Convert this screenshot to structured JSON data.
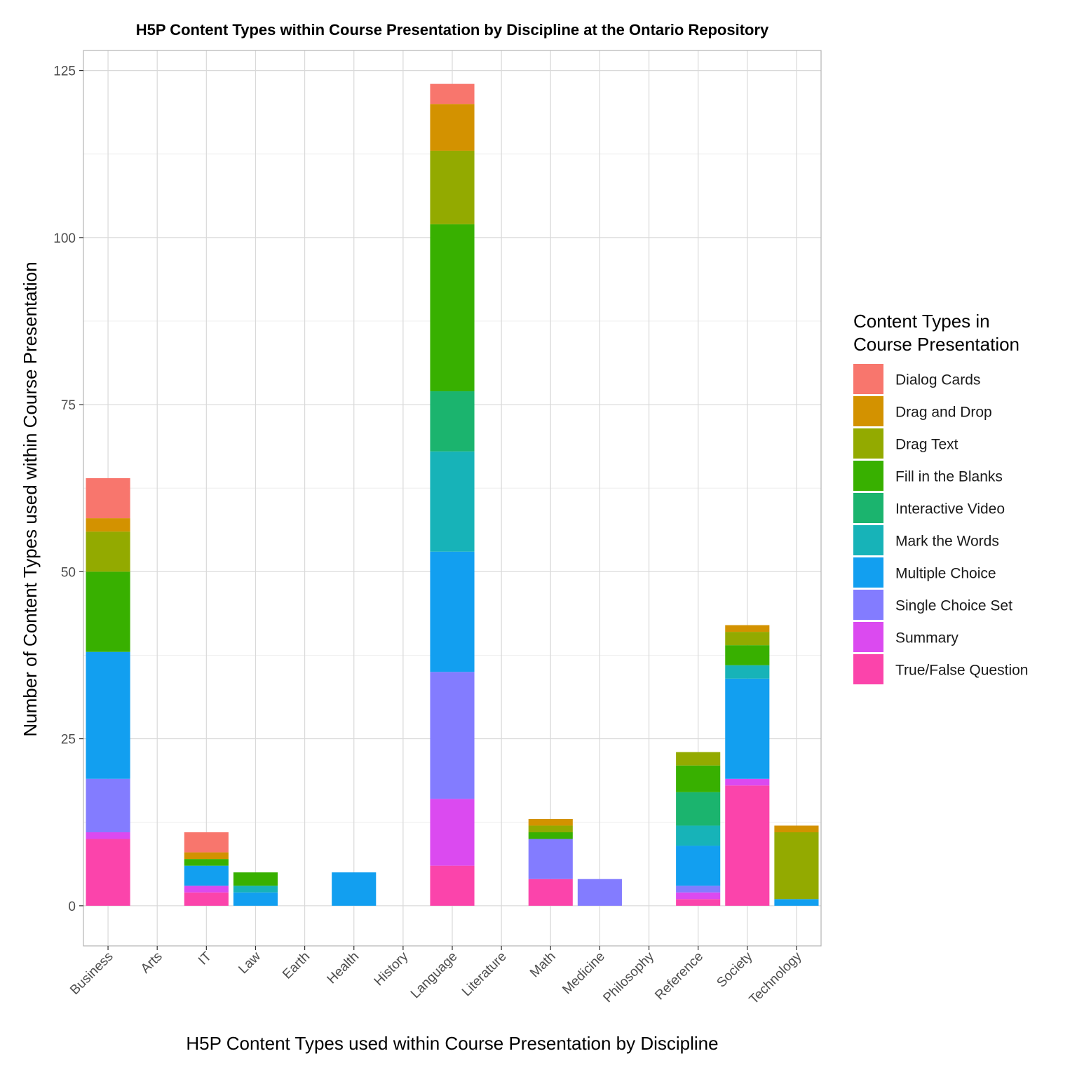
{
  "chart_data": {
    "type": "bar",
    "stacked": true,
    "title": "H5P Content Types within Course Presentation by Discipline at the Ontario Repository",
    "xlabel": "H5P Content Types used within Course Presentation by Discipline",
    "ylabel": "Number of Content Types used within Course Presentation",
    "ylim": [
      -6,
      128
    ],
    "yticks": [
      0,
      25,
      50,
      75,
      100,
      125
    ],
    "grid": true,
    "legend": {
      "title_lines": [
        "Content Types in",
        "Course Presentation"
      ],
      "position": "right"
    },
    "categories": [
      "Business",
      "Arts",
      "IT",
      "Law",
      "Earth",
      "Health",
      "History",
      "Language",
      "Literature",
      "Math",
      "Medicine",
      "Philosophy",
      "Reference",
      "Society",
      "Technology"
    ],
    "series": [
      {
        "name": "Dialog Cards",
        "color": "#F8766D",
        "values": [
          6,
          0,
          3,
          0,
          0,
          0,
          0,
          3,
          0,
          0,
          0,
          0,
          0,
          0,
          0
        ]
      },
      {
        "name": "Drag and Drop",
        "color": "#D39200",
        "values": [
          2,
          0,
          1,
          0,
          0,
          0,
          0,
          7,
          0,
          1,
          0,
          0,
          0,
          1,
          1
        ]
      },
      {
        "name": "Drag Text",
        "color": "#93AA00",
        "values": [
          6,
          0,
          0,
          0,
          0,
          0,
          0,
          11,
          0,
          1,
          0,
          0,
          2,
          2,
          10
        ]
      },
      {
        "name": "Fill in the Blanks",
        "color": "#38B000",
        "values": [
          12,
          0,
          1,
          2,
          0,
          0,
          0,
          25,
          0,
          1,
          0,
          0,
          4,
          3,
          0
        ]
      },
      {
        "name": "Interactive Video",
        "color": "#1BB46E",
        "values": [
          0,
          0,
          0,
          0,
          0,
          0,
          0,
          9,
          0,
          0,
          0,
          0,
          5,
          0,
          0
        ]
      },
      {
        "name": "Mark the Words",
        "color": "#17B3B8",
        "values": [
          0,
          0,
          0,
          1,
          0,
          0,
          0,
          15,
          0,
          0,
          0,
          0,
          3,
          2,
          0
        ]
      },
      {
        "name": "Multiple Choice",
        "color": "#129FF0",
        "values": [
          19,
          0,
          3,
          2,
          0,
          5,
          0,
          18,
          0,
          0,
          0,
          0,
          6,
          15,
          1
        ]
      },
      {
        "name": "Single Choice Set",
        "color": "#837CFF",
        "values": [
          8,
          0,
          0,
          0,
          0,
          0,
          0,
          19,
          0,
          6,
          4,
          0,
          1,
          0,
          0
        ]
      },
      {
        "name": "Summary",
        "color": "#DB4AF0",
        "values": [
          1,
          0,
          1,
          0,
          0,
          0,
          0,
          10,
          0,
          0,
          0,
          0,
          1,
          1,
          0
        ]
      },
      {
        "name": "True/False Question",
        "color": "#FB44AB",
        "values": [
          10,
          0,
          2,
          0,
          0,
          0,
          0,
          6,
          0,
          4,
          0,
          0,
          1,
          18,
          0
        ]
      }
    ]
  }
}
